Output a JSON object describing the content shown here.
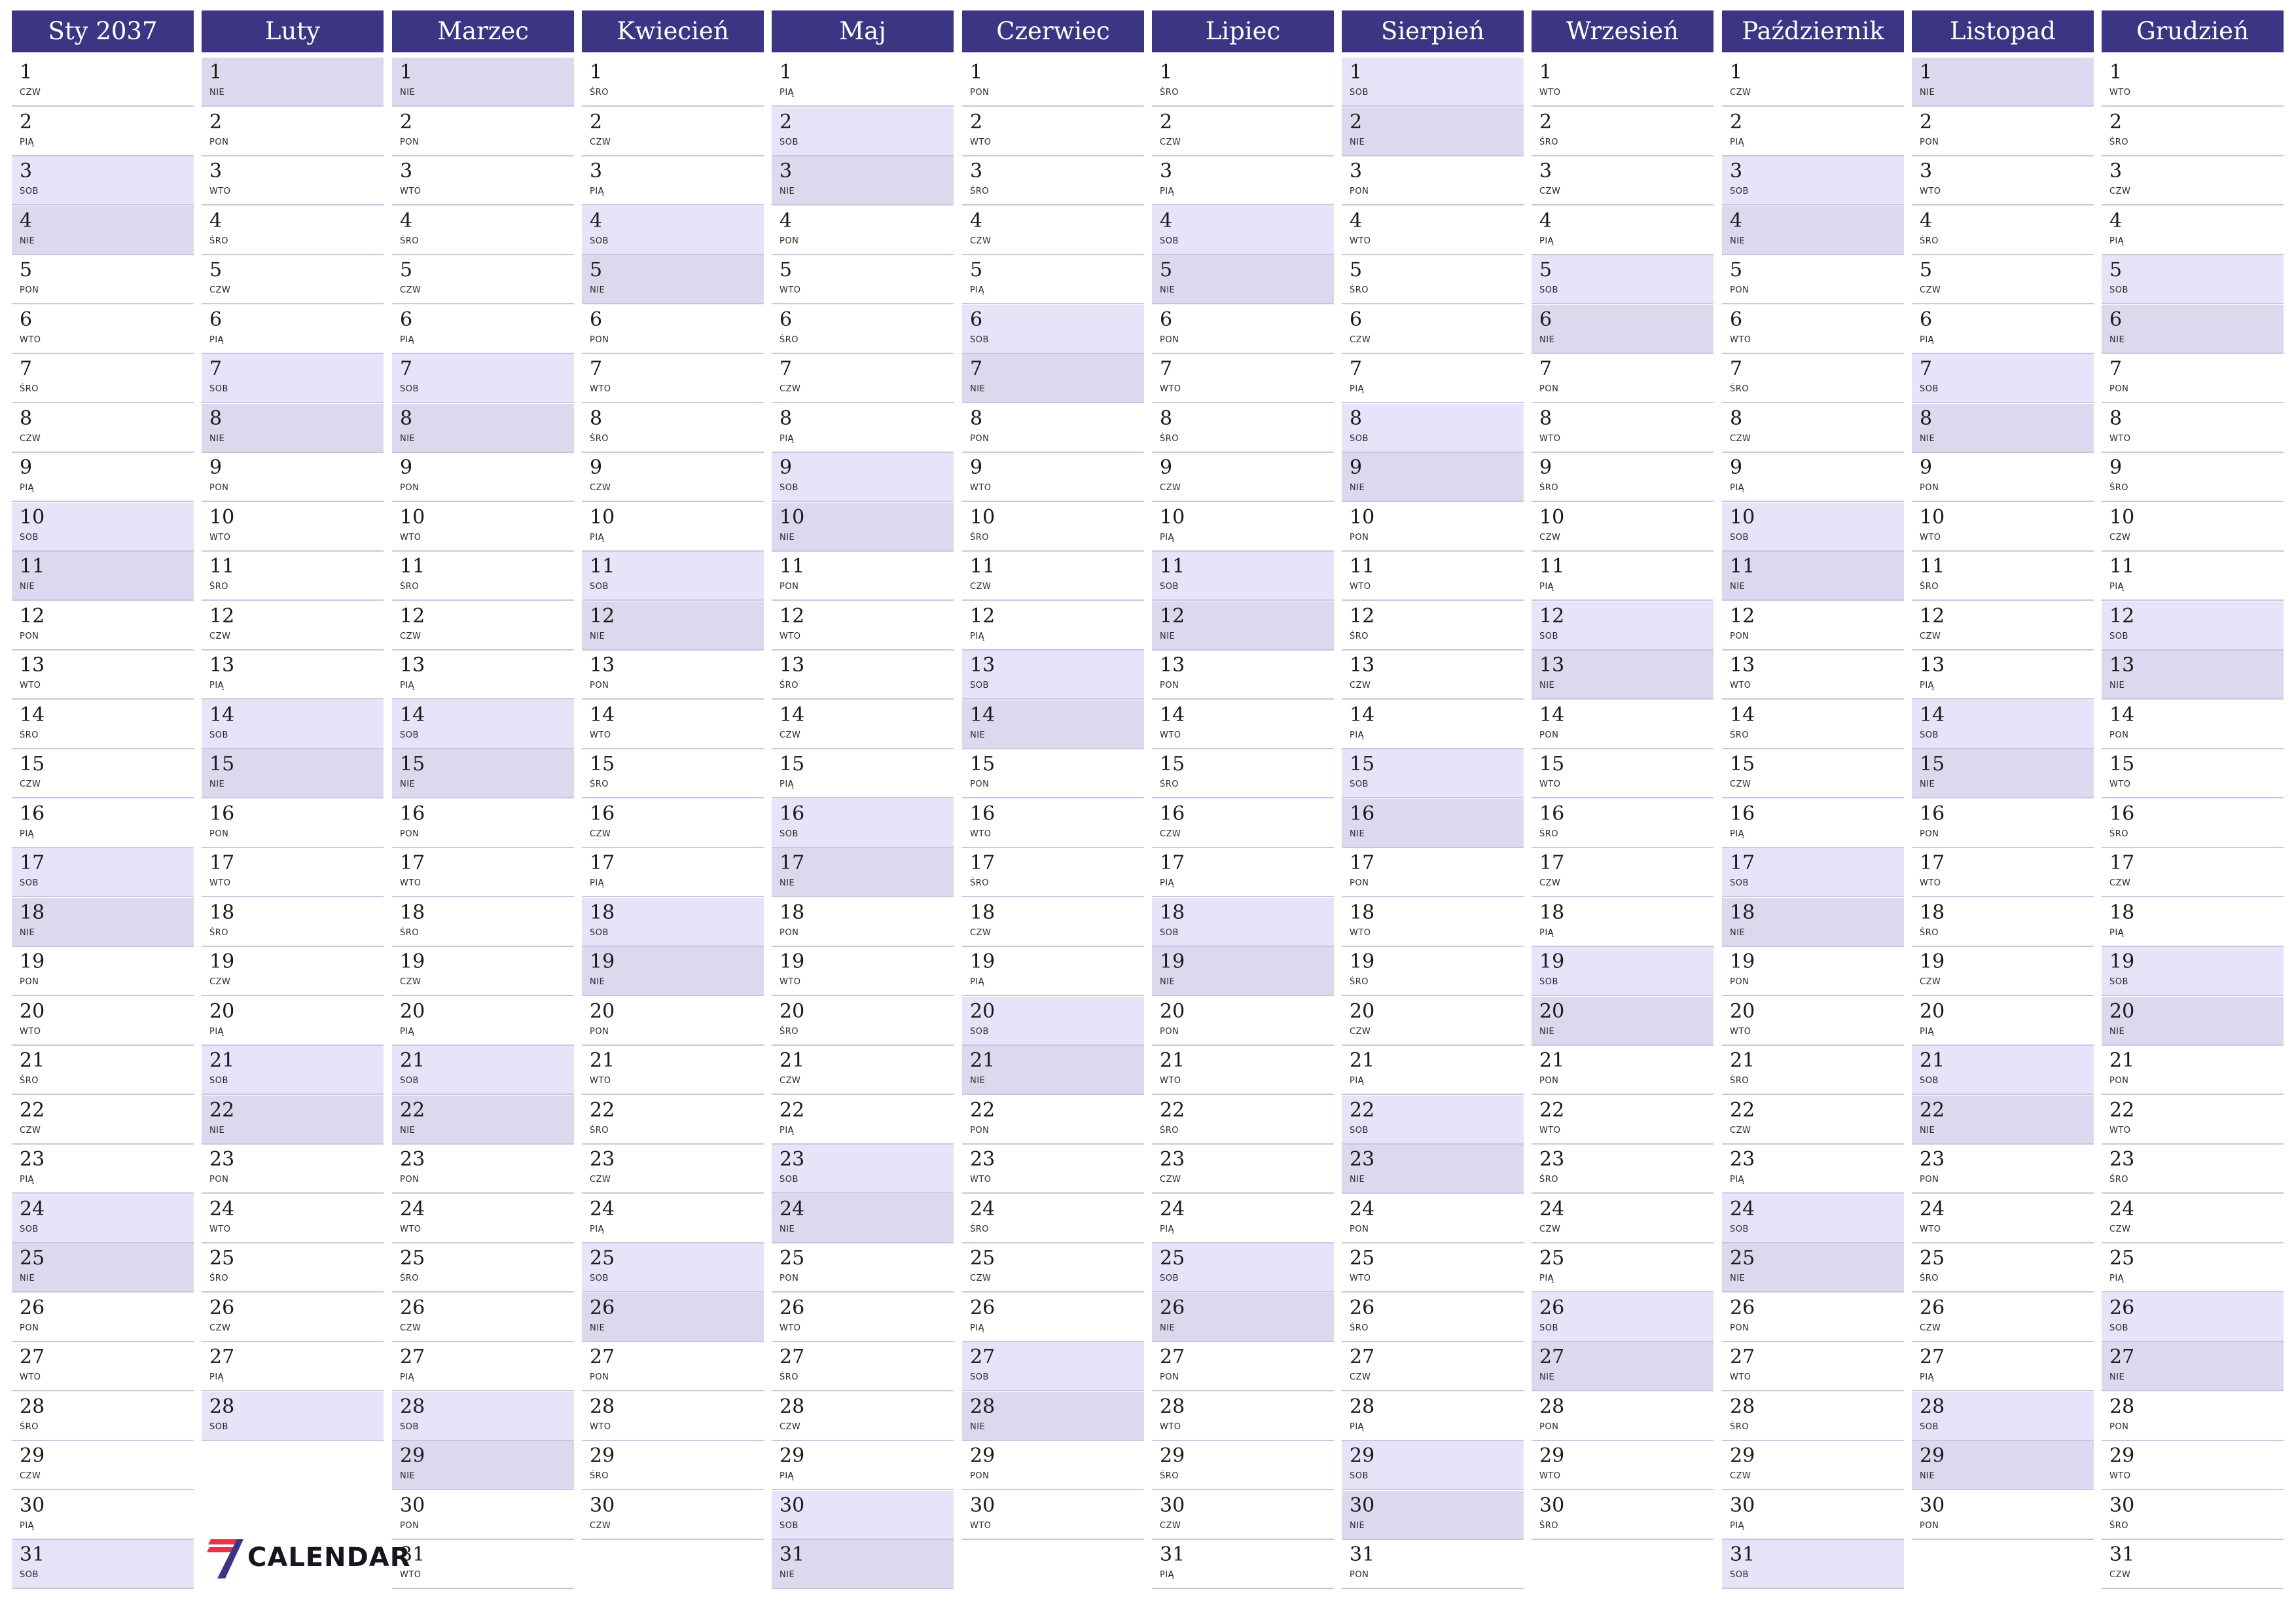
{
  "colors": {
    "header": "#3c3584",
    "saturday": "#e6e4f8",
    "sunday": "#dcd9ee",
    "divider": "#c9c6e2",
    "logo_red": "#e8334a",
    "logo_purple": "#3c3584"
  },
  "weekday_names": [
    "PON",
    "WTO",
    "ŚRO",
    "CZW",
    "PIĄ",
    "SOB",
    "NIE"
  ],
  "months": [
    {
      "name": "Sty 2037",
      "days": 31,
      "first_weekday": 3
    },
    {
      "name": "Luty",
      "days": 28,
      "first_weekday": 6
    },
    {
      "name": "Marzec",
      "days": 31,
      "first_weekday": 6
    },
    {
      "name": "Kwiecień",
      "days": 30,
      "first_weekday": 2
    },
    {
      "name": "Maj",
      "days": 31,
      "first_weekday": 4
    },
    {
      "name": "Czerwiec",
      "days": 30,
      "first_weekday": 0
    },
    {
      "name": "Lipiec",
      "days": 31,
      "first_weekday": 2
    },
    {
      "name": "Sierpień",
      "days": 31,
      "first_weekday": 5
    },
    {
      "name": "Wrzesień",
      "days": 30,
      "first_weekday": 1
    },
    {
      "name": "Październik",
      "days": 31,
      "first_weekday": 3
    },
    {
      "name": "Listopad",
      "days": 30,
      "first_weekday": 6
    },
    {
      "name": "Grudzień",
      "days": 31,
      "first_weekday": 1
    }
  ],
  "logo": {
    "text": "CALENDAR",
    "icon": "seven-logo-icon"
  }
}
